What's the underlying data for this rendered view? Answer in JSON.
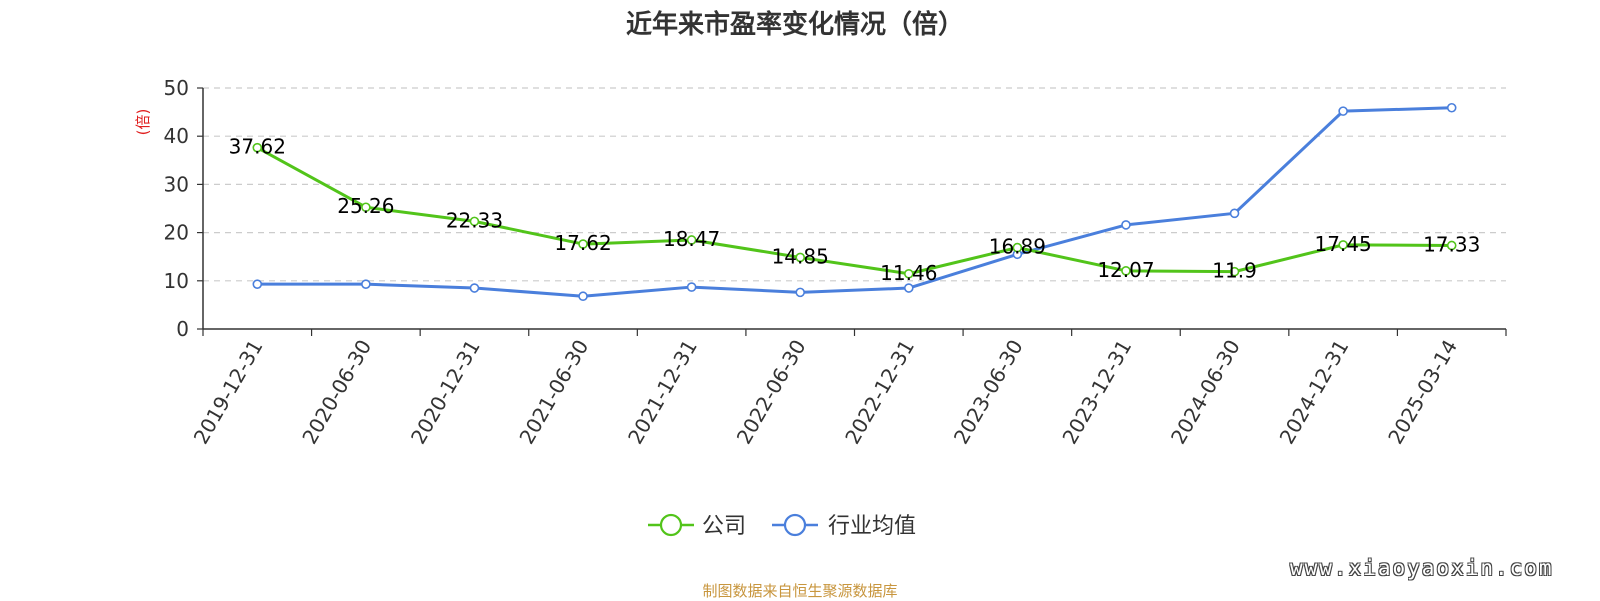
{
  "chart_data": {
    "type": "line",
    "title": "近年来市盈率变化情况（倍）",
    "ylabel": "(倍)",
    "xlabel": "",
    "ylim": [
      0,
      50
    ],
    "yticks": [
      0,
      10,
      20,
      30,
      40,
      50
    ],
    "categories": [
      "2019-12-31",
      "2020-06-30",
      "2020-12-31",
      "2021-06-30",
      "2021-12-31",
      "2022-06-30",
      "2022-12-31",
      "2023-06-30",
      "2023-12-31",
      "2024-06-30",
      "2024-12-31",
      "2025-03-14"
    ],
    "grid": true,
    "legend_position": "bottom",
    "series": [
      {
        "name": "公司",
        "color": "#52c41a",
        "values": [
          37.62,
          25.26,
          22.33,
          17.62,
          18.47,
          14.85,
          11.46,
          16.89,
          12.07,
          11.9,
          17.45,
          17.33
        ],
        "labels": [
          "37.62",
          "25.26",
          "22.33",
          "17.62",
          "18.47",
          "14.85",
          "11.46",
          "16.89",
          "12.07",
          "11.9",
          "17.45",
          "17.33"
        ]
      },
      {
        "name": "行业均值",
        "color": "#4a7fdc",
        "values": [
          9.3,
          9.3,
          8.5,
          6.8,
          8.7,
          7.6,
          8.5,
          15.5,
          21.6,
          24.0,
          45.2,
          45.9
        ]
      }
    ]
  },
  "footer": {
    "source": "制图数据来自恒生聚源数据库",
    "watermark": "www.xiaoyaoxin.com"
  }
}
